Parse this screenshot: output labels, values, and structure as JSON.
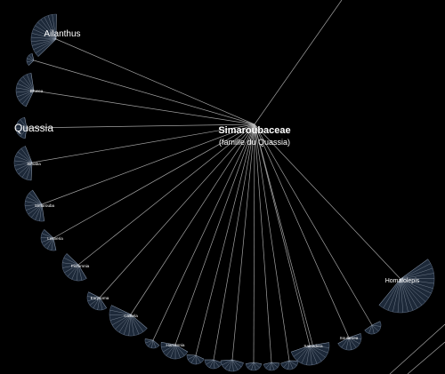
{
  "root": {
    "name": "Simaroubaceae",
    "subtitle": "(famille du Quassia)"
  },
  "genera": [
    {
      "id": "ailanthus",
      "label": "Ailanthus"
    },
    {
      "id": "g2",
      "label": ""
    },
    {
      "id": "brucea",
      "label": "Brucea"
    },
    {
      "id": "quassia",
      "label": "Quassia"
    },
    {
      "id": "simaba",
      "label": "Simaba"
    },
    {
      "id": "simarouba",
      "label": "Simarouba"
    },
    {
      "id": "leitneria",
      "label": "Leitneria"
    },
    {
      "id": "picramnia",
      "label": "Picramnia"
    },
    {
      "id": "eurycoma",
      "label": "Eurycoma"
    },
    {
      "id": "castela",
      "label": "Castela"
    },
    {
      "id": "g11",
      "label": ""
    },
    {
      "id": "harrisonia",
      "label": "Harrisonia"
    },
    {
      "id": "g13",
      "label": ""
    },
    {
      "id": "g14",
      "label": ""
    },
    {
      "id": "g15",
      "label": ""
    },
    {
      "id": "g16",
      "label": ""
    },
    {
      "id": "g17",
      "label": ""
    },
    {
      "id": "g18",
      "label": ""
    },
    {
      "id": "g19",
      "label": ""
    },
    {
      "id": "samadera",
      "label": "Samadera"
    },
    {
      "id": "soulamea",
      "label": "Soulamea"
    },
    {
      "id": "g22",
      "label": ""
    },
    {
      "id": "homalolepis",
      "label": "Homalolepis"
    }
  ]
}
